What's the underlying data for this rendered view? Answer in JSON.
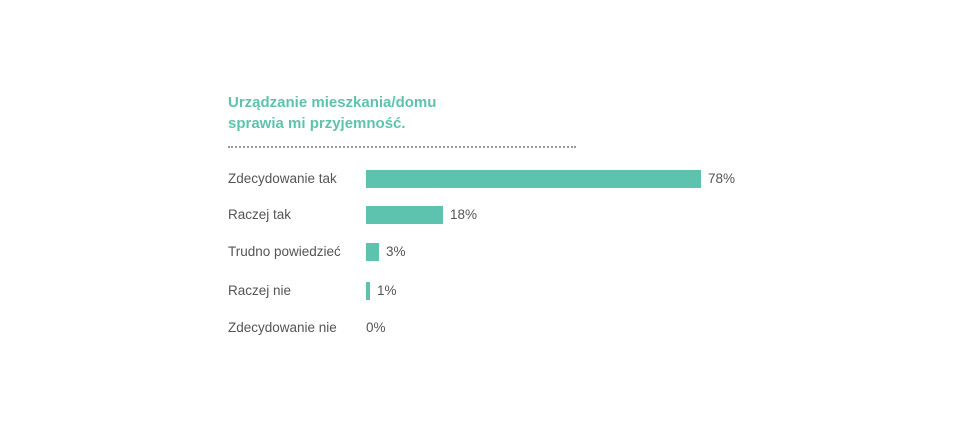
{
  "chart_data": {
    "type": "bar",
    "orientation": "horizontal",
    "title_lines": [
      "Urządzanie mieszkania/domu",
      "sprawia mi przyjemność."
    ],
    "categories": [
      "Zdecydowanie tak",
      "Raczej tak",
      "Trudno powiedzieć",
      "Raczej nie",
      "Zdecydowanie nie"
    ],
    "values": [
      78,
      18,
      3,
      1,
      0
    ],
    "value_labels": [
      "78%",
      "18%",
      "3%",
      "1%",
      "0%"
    ],
    "unit": "%",
    "xlim": [
      0,
      78
    ],
    "grid": false,
    "legend": "none",
    "bar_color": "#5ec3ae",
    "title_color": "#5ec3ae"
  }
}
